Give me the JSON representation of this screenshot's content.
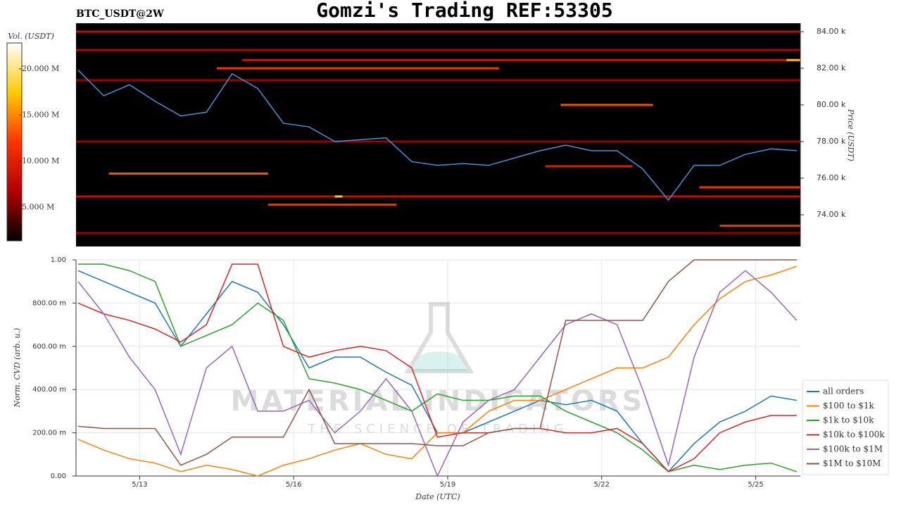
{
  "title": "Gomzi's Trading REF:53305",
  "chart_data": [
    {
      "type": "heatmap",
      "label": "BTC_USDT@2W",
      "ylabel": "Price (USDT)",
      "colorbar_label": "Vol. (USDT)",
      "colormap": [
        "#000000",
        "#b30000",
        "#ff3300",
        "#ffcc00",
        "#ffffff"
      ],
      "clim": [
        1400000,
        22800000
      ],
      "cticks": [
        {
          "value": 5000000,
          "label": "5.000 M"
        },
        {
          "value": 10000000,
          "label": "10.000 M"
        },
        {
          "value": 15000000,
          "label": "15.000 M"
        },
        {
          "value": 20000000,
          "label": "20.000 M"
        }
      ],
      "xlim": [
        11.76,
        25.87
      ],
      "ylim": [
        72270,
        84460
      ],
      "yticks": [
        {
          "value": 74000,
          "label": "74.00 k"
        },
        {
          "value": 76000,
          "label": "76.00 k"
        },
        {
          "value": 78000,
          "label": "78.00 k"
        },
        {
          "value": 80000,
          "label": "80.00 k"
        },
        {
          "value": 82000,
          "label": "82.00 k"
        },
        {
          "value": 84000,
          "label": "84.00 k"
        }
      ],
      "price_color": "#4a90d9",
      "x": [
        11.8,
        12.3,
        12.8,
        13.3,
        13.8,
        14.3,
        14.8,
        15.3,
        15.8,
        16.3,
        16.8,
        17.3,
        17.8,
        18.3,
        18.8,
        19.3,
        19.8,
        20.3,
        20.8,
        21.3,
        21.8,
        22.3,
        22.8,
        23.3,
        23.8,
        24.3,
        24.8,
        25.3,
        25.8
      ],
      "price": [
        81900,
        80500,
        81100,
        80200,
        79400,
        79600,
        81700,
        80900,
        79000,
        78800,
        78000,
        78100,
        78200,
        76900,
        76700,
        76800,
        76700,
        77100,
        77500,
        77800,
        77500,
        77500,
        76500,
        74800,
        76700,
        76700,
        77300,
        77600,
        77500
      ],
      "levels": [
        {
          "price": 84000,
          "x0": 11.76,
          "x1": 25.87,
          "volume": 8000000
        },
        {
          "price": 83000,
          "x0": 11.76,
          "x1": 25.87,
          "volume": 7000000
        },
        {
          "price": 82450,
          "x0": 15.0,
          "x1": 25.87,
          "volume": 9000000
        },
        {
          "price": 82000,
          "x0": 14.5,
          "x1": 20.0,
          "volume": 12000000
        },
        {
          "price": 82450,
          "x0": 25.6,
          "x1": 25.87,
          "volume": 17000000
        },
        {
          "price": 81350,
          "x0": 11.76,
          "x1": 25.87,
          "volume": 6000000
        },
        {
          "price": 80000,
          "x0": 21.2,
          "x1": 23.0,
          "volume": 13000000
        },
        {
          "price": 78000,
          "x0": 11.76,
          "x1": 25.87,
          "volume": 6000000
        },
        {
          "price": 76650,
          "x0": 20.9,
          "x1": 22.6,
          "volume": 10000000
        },
        {
          "price": 76250,
          "x0": 12.4,
          "x1": 15.5,
          "volume": 13000000
        },
        {
          "price": 75500,
          "x0": 23.9,
          "x1": 25.87,
          "volume": 12000000
        },
        {
          "price": 75000,
          "x0": 11.76,
          "x1": 25.87,
          "volume": 8000000
        },
        {
          "price": 75000,
          "x0": 16.8,
          "x1": 16.95,
          "volume": 18000000
        },
        {
          "price": 74550,
          "x0": 15.5,
          "x1": 18.0,
          "volume": 12000000
        },
        {
          "price": 73400,
          "x0": 24.3,
          "x1": 25.87,
          "volume": 12000000
        },
        {
          "price": 73000,
          "x0": 11.76,
          "x1": 25.87,
          "volume": 6000000
        }
      ]
    },
    {
      "type": "line",
      "ylabel": "Norm. CVD (arb. u.)",
      "xlabel": "Date (UTC)",
      "watermark": "MATERIAL INDICATORS",
      "watermark_sub": "THE SCIENCE OF TRADING",
      "grid": true,
      "xlim": [
        11.76,
        25.87
      ],
      "xticks": [
        {
          "value": 13,
          "label": "5/13"
        },
        {
          "value": 16,
          "label": "5/16"
        },
        {
          "value": 19,
          "label": "5/19"
        },
        {
          "value": 22,
          "label": "5/22"
        },
        {
          "value": 25,
          "label": "5/25"
        }
      ],
      "ylim": [
        0,
        1
      ],
      "yticks": [
        {
          "value": 0,
          "label": "0.00"
        },
        {
          "value": 0.2,
          "label": "200.00 m"
        },
        {
          "value": 0.4,
          "label": "400.00 m"
        },
        {
          "value": 0.6,
          "label": "600.00 m"
        },
        {
          "value": 0.8,
          "label": "800.00 m"
        },
        {
          "value": 1,
          "label": "1.00"
        }
      ],
      "x": [
        11.8,
        12.3,
        12.8,
        13.3,
        13.8,
        14.3,
        14.8,
        15.3,
        15.8,
        16.3,
        16.8,
        17.3,
        17.8,
        18.3,
        18.8,
        19.3,
        19.8,
        20.3,
        20.8,
        21.3,
        21.8,
        22.3,
        22.8,
        23.3,
        23.8,
        24.3,
        24.8,
        25.3,
        25.8
      ],
      "series": [
        {
          "name": "all orders",
          "color": "#1f77b4",
          "values": [
            0.95,
            0.9,
            0.85,
            0.8,
            0.6,
            0.75,
            0.9,
            0.85,
            0.7,
            0.5,
            0.55,
            0.55,
            0.48,
            0.42,
            0.2,
            0.2,
            0.25,
            0.3,
            0.35,
            0.33,
            0.35,
            0.3,
            0.15,
            0.02,
            0.15,
            0.25,
            0.3,
            0.37,
            0.35
          ]
        },
        {
          "name": "$100 to $1k",
          "color": "#ff7f0e",
          "values": [
            0.17,
            0.12,
            0.08,
            0.06,
            0.02,
            0.05,
            0.03,
            0.0,
            0.05,
            0.08,
            0.12,
            0.15,
            0.1,
            0.08,
            0.2,
            0.2,
            0.3,
            0.35,
            0.35,
            0.4,
            0.45,
            0.5,
            0.5,
            0.55,
            0.7,
            0.82,
            0.9,
            0.93,
            0.97
          ]
        },
        {
          "name": "$1k to $10k",
          "color": "#2ca02c",
          "values": [
            0.98,
            0.98,
            0.95,
            0.9,
            0.6,
            0.65,
            0.7,
            0.8,
            0.72,
            0.45,
            0.43,
            0.4,
            0.35,
            0.3,
            0.38,
            0.35,
            0.35,
            0.37,
            0.37,
            0.3,
            0.25,
            0.2,
            0.12,
            0.02,
            0.05,
            0.03,
            0.05,
            0.06,
            0.02
          ]
        },
        {
          "name": "$10k to $100k",
          "color": "#d62728",
          "values": [
            0.8,
            0.75,
            0.72,
            0.68,
            0.62,
            0.7,
            0.98,
            0.98,
            0.6,
            0.55,
            0.58,
            0.6,
            0.58,
            0.5,
            0.18,
            0.2,
            0.2,
            0.22,
            0.22,
            0.2,
            0.2,
            0.22,
            0.15,
            0.02,
            0.08,
            0.2,
            0.25,
            0.28,
            0.28
          ]
        },
        {
          "name": "$100k to $1M",
          "color": "#9467bd",
          "values": [
            0.9,
            0.75,
            0.55,
            0.4,
            0.1,
            0.5,
            0.6,
            0.3,
            0.3,
            0.35,
            0.2,
            0.3,
            0.45,
            0.3,
            0.0,
            0.25,
            0.35,
            0.4,
            0.55,
            0.7,
            0.75,
            0.7,
            0.4,
            0.05,
            0.55,
            0.85,
            0.95,
            0.85,
            0.72
          ]
        },
        {
          "name": "$1M to $10M",
          "color": "#8c564b",
          "values": [
            0.23,
            0.22,
            0.22,
            0.22,
            0.05,
            0.1,
            0.18,
            0.18,
            0.18,
            0.4,
            0.15,
            0.15,
            0.15,
            0.15,
            0.14,
            0.14,
            0.2,
            0.22,
            0.22,
            0.72,
            0.72,
            0.72,
            0.72,
            0.9,
            1.0,
            1.0,
            1.0,
            1.0,
            1.0
          ]
        }
      ]
    }
  ]
}
